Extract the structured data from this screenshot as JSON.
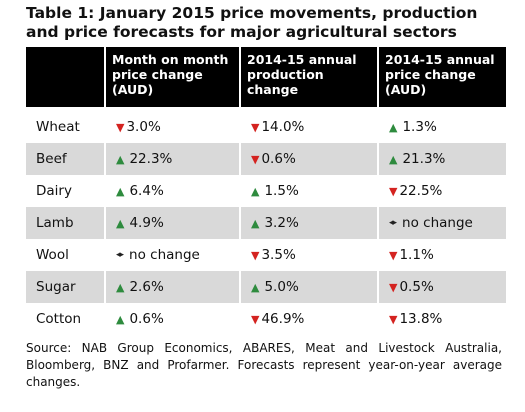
{
  "title": "Table 1: January 2015 price movements, production and price forecasts for major agricultural sectors",
  "headers": [
    "",
    "Month on month price change (AUD)",
    "2014-15 annual production change",
    "2014-15 annual price change (AUD)"
  ],
  "rows": [
    {
      "commodity": "Wheat",
      "cells": [
        {
          "dir": "down",
          "text": "3.0%"
        },
        {
          "dir": "down",
          "text": "14.0%"
        },
        {
          "dir": "up",
          "text": "1.3%"
        }
      ]
    },
    {
      "commodity": "Beef",
      "cells": [
        {
          "dir": "up",
          "text": "22.3%"
        },
        {
          "dir": "down",
          "text": "0.6%"
        },
        {
          "dir": "up",
          "text": "21.3%"
        }
      ]
    },
    {
      "commodity": "Dairy",
      "cells": [
        {
          "dir": "up",
          "text": "6.4%"
        },
        {
          "dir": "up",
          "text": "1.5%"
        },
        {
          "dir": "down",
          "text": "22.5%"
        }
      ]
    },
    {
      "commodity": "Lamb",
      "cells": [
        {
          "dir": "up",
          "text": "4.9%"
        },
        {
          "dir": "up",
          "text": "3.2%"
        },
        {
          "dir": "flat",
          "text": "no change"
        }
      ]
    },
    {
      "commodity": "Wool",
      "cells": [
        {
          "dir": "flat",
          "text": "no change"
        },
        {
          "dir": "down",
          "text": "3.5%"
        },
        {
          "dir": "down",
          "text": "1.1%"
        }
      ]
    },
    {
      "commodity": "Sugar",
      "cells": [
        {
          "dir": "up",
          "text": "2.6%"
        },
        {
          "dir": "up",
          "text": "5.0%"
        },
        {
          "dir": "down",
          "text": "0.5%"
        }
      ]
    },
    {
      "commodity": "Cotton",
      "cells": [
        {
          "dir": "up",
          "text": "0.6%"
        },
        {
          "dir": "down",
          "text": "46.9%"
        },
        {
          "dir": "down",
          "text": "13.8%"
        }
      ]
    }
  ],
  "source": "Source: NAB Group Economics, ABARES, Meat and Livestock Australia, Bloomberg, BNZ and Profarmer. Forecasts represent year-on-year average changes.",
  "colors": {
    "up": "#2e8b3e",
    "down": "#d42320",
    "shade": "#d9d9d9",
    "header_bg": "#000000"
  },
  "icons": {
    "up": "up-triangle-icon",
    "down": "down-triangle-icon",
    "flat": "left-right-arrows-icon"
  }
}
